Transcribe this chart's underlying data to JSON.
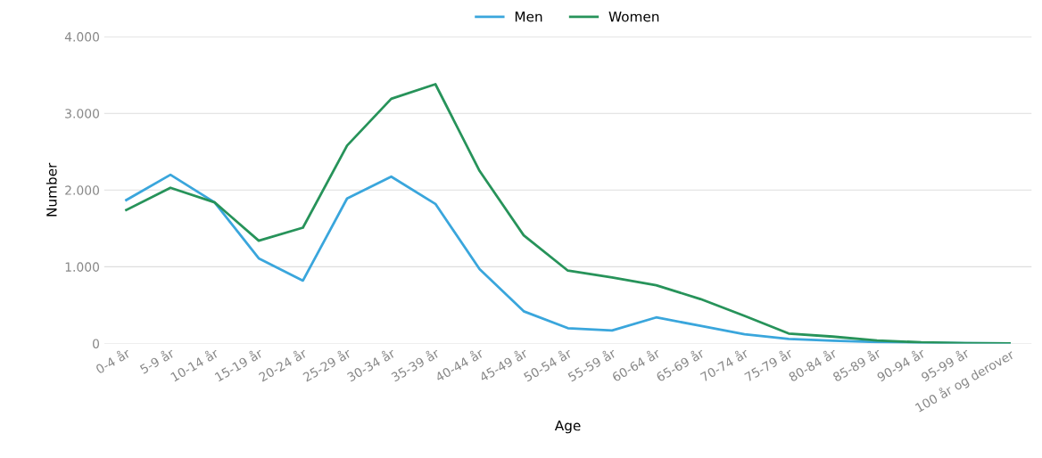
{
  "chart_data": {
    "type": "line",
    "xlabel": "Age",
    "ylabel": "Number",
    "categories": [
      "0-4 år",
      "5-9 år",
      "10-14 år",
      "15-19 år",
      "20-24 år",
      "25-29 år",
      "30-34 år",
      "35-39 år",
      "40-44 år",
      "45-49 år",
      "50-54 år",
      "55-59 år",
      "60-64 år",
      "65-69 år",
      "70-74 år",
      "75-79 år",
      "80-84 år",
      "85-89 år",
      "90-94 år",
      "95-99 år",
      "100 år og derover"
    ],
    "series": [
      {
        "name": "Men",
        "color": "#3aa6dc",
        "values": [
          1870,
          2200,
          1840,
          1110,
          820,
          1890,
          2175,
          1820,
          970,
          420,
          200,
          170,
          340,
          230,
          120,
          60,
          35,
          20,
          10,
          5,
          0
        ]
      },
      {
        "name": "Women",
        "color": "#27935a",
        "values": [
          1740,
          2030,
          1840,
          1340,
          1510,
          2580,
          3190,
          3380,
          2250,
          1410,
          950,
          860,
          760,
          580,
          360,
          130,
          90,
          40,
          15,
          5,
          2
        ]
      }
    ],
    "ylim": [
      0,
      4000
    ],
    "yticks": [
      0,
      {
        "value": 1000,
        "label": "1.000"
      },
      {
        "value": 2000,
        "label": "2.000"
      },
      {
        "value": 3000,
        "label": "3.000"
      },
      {
        "value": 4000,
        "label": "4.000"
      }
    ],
    "grid": "y",
    "legend": "top",
    "marker": "none",
    "line_style": "solid"
  }
}
